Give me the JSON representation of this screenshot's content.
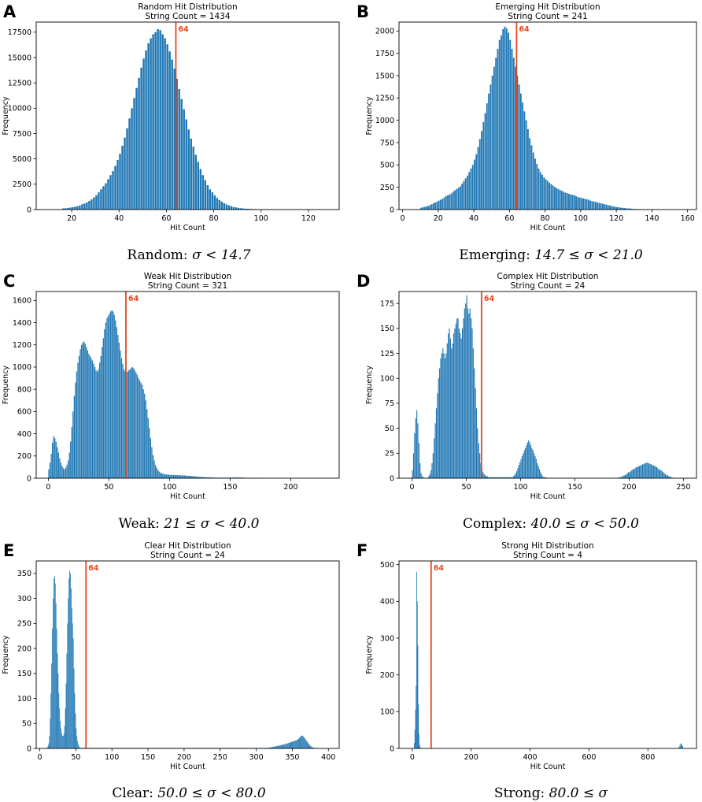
{
  "figure": {
    "bar_color": "#1f77b4",
    "marker_color": "#e8461a"
  },
  "chart_data": [
    {
      "panel": "A",
      "type": "bar",
      "title": "Random Hit Distribution",
      "subtitle": "String Count = 1434",
      "xlabel": "Hit Count",
      "ylabel": "Frequency",
      "xlim": [
        5,
        133
      ],
      "ylim": [
        0,
        18500
      ],
      "xticks": [
        20,
        40,
        60,
        80,
        100,
        120
      ],
      "yticks": [
        0,
        2500,
        5000,
        7500,
        10000,
        12500,
        15000,
        17500
      ],
      "marker": 64,
      "marker_label": "64",
      "bin_width": 1,
      "x_start": 16,
      "values": [
        120,
        140,
        160,
        200,
        230,
        280,
        330,
        400,
        520,
        600,
        700,
        850,
        1000,
        1200,
        1400,
        1700,
        2000,
        2300,
        2600,
        3000,
        3400,
        3800,
        4300,
        4900,
        5500,
        6300,
        7100,
        8000,
        9000,
        10000,
        11000,
        12000,
        13000,
        14000,
        14900,
        15700,
        16400,
        16900,
        17300,
        17500,
        17800,
        17700,
        17300,
        16900,
        16300,
        15600,
        14800,
        13900,
        12900,
        11900,
        10900,
        9900,
        8900,
        7900,
        7000,
        6200,
        5400,
        4700,
        4000,
        3400,
        2900,
        2400,
        2000,
        1700,
        1400,
        1150,
        950,
        780,
        630,
        510,
        410,
        330,
        260,
        210,
        170,
        140,
        110,
        90,
        80,
        70,
        60,
        50,
        40,
        40,
        35,
        30,
        25,
        20,
        20,
        15,
        12,
        10,
        10,
        8,
        6,
        5,
        5,
        4,
        3,
        2,
        2,
        2,
        1,
        1,
        1,
        1,
        1
      ]
    },
    {
      "panel": "B",
      "type": "bar",
      "title": "Emerging Hit Distribution",
      "subtitle": "String Count = 241",
      "xlabel": "Hit Count",
      "ylabel": "Frequency",
      "xlim": [
        -2,
        165
      ],
      "ylim": [
        0,
        2100
      ],
      "xticks": [
        0,
        20,
        40,
        60,
        80,
        100,
        120,
        140,
        160
      ],
      "yticks": [
        0,
        250,
        500,
        750,
        1000,
        1250,
        1500,
        1750,
        2000
      ],
      "marker": 64,
      "marker_label": "64",
      "bin_width": 1,
      "x_start": 10,
      "values": [
        20,
        25,
        30,
        35,
        40,
        50,
        60,
        70,
        80,
        90,
        100,
        110,
        120,
        135,
        150,
        160,
        170,
        180,
        200,
        215,
        230,
        245,
        260,
        290,
        320,
        350,
        380,
        420,
        460,
        500,
        560,
        620,
        700,
        790,
        880,
        980,
        1080,
        1190,
        1300,
        1400,
        1500,
        1600,
        1700,
        1800,
        1900,
        1950,
        2020,
        2050,
        2030,
        1980,
        1900,
        1800,
        1700,
        1600,
        1500,
        1400,
        1300,
        1200,
        1100,
        1000,
        900,
        800,
        720,
        640,
        570,
        510,
        460,
        420,
        390,
        360,
        340,
        320,
        300,
        285,
        270,
        255,
        240,
        230,
        220,
        210,
        200,
        190,
        185,
        175,
        170,
        165,
        160,
        150,
        140,
        135,
        130,
        125,
        120,
        115,
        110,
        100,
        95,
        90,
        85,
        80,
        75,
        70,
        65,
        60,
        55,
        50,
        45,
        40,
        35,
        30,
        28,
        25,
        22,
        20,
        18,
        15,
        13,
        12,
        10,
        8,
        7,
        6,
        5,
        4,
        3,
        3,
        2,
        2,
        1,
        1,
        1,
        1,
        1,
        1
      ]
    },
    {
      "panel": "C",
      "type": "bar",
      "title": "Weak Hit Distribution",
      "subtitle": "String Count = 321",
      "xlabel": "Hit Count",
      "ylabel": "Frequency",
      "xlim": [
        -10,
        240
      ],
      "ylim": [
        0,
        1680
      ],
      "xticks": [
        0,
        50,
        100,
        150,
        200
      ],
      "yticks": [
        0,
        200,
        400,
        600,
        800,
        1000,
        1200,
        1400,
        1600
      ],
      "marker": 64,
      "marker_label": "64",
      "bin_width": 1,
      "x_start": 0,
      "values": [
        80,
        140,
        220,
        320,
        380,
        360,
        330,
        280,
        230,
        180,
        140,
        110,
        90,
        80,
        95,
        120,
        160,
        230,
        330,
        460,
        600,
        740,
        860,
        960,
        1040,
        1100,
        1160,
        1200,
        1220,
        1230,
        1210,
        1180,
        1150,
        1120,
        1100,
        1080,
        1060,
        1030,
        1000,
        970,
        960,
        980,
        1040,
        1100,
        1180,
        1260,
        1340,
        1400,
        1440,
        1460,
        1480,
        1500,
        1510,
        1500,
        1470,
        1420,
        1360,
        1290,
        1220,
        1150,
        1080,
        1030,
        980,
        960,
        950,
        960,
        970,
        980,
        990,
        1000,
        990,
        970,
        950,
        930,
        900,
        880,
        860,
        840,
        800,
        760,
        700,
        620,
        540,
        450,
        360,
        280,
        210,
        160,
        120,
        95,
        75,
        60,
        50,
        45,
        40,
        38,
        35,
        34,
        33,
        32,
        31,
        30,
        30,
        29,
        29,
        28,
        28,
        27,
        27,
        26,
        26,
        25,
        25,
        24,
        23,
        22,
        21,
        20,
        19,
        18,
        17,
        16,
        15,
        14,
        13,
        12,
        11,
        10,
        10,
        9,
        9,
        8,
        8,
        8,
        7,
        7,
        7,
        6,
        6,
        6,
        5,
        5,
        5,
        5,
        5,
        5,
        5,
        5,
        5,
        5,
        6,
        6,
        6,
        6,
        7,
        7,
        7,
        6,
        6,
        6,
        5,
        5,
        5,
        4,
        4,
        3,
        3,
        2,
        2,
        2,
        1,
        1,
        1,
        1
      ]
    },
    {
      "panel": "D",
      "type": "bar",
      "title": "Complex Hit Distribution",
      "subtitle": "String Count = 24",
      "xlabel": "Hit Count",
      "ylabel": "Frequency",
      "xlim": [
        -12,
        262
      ],
      "ylim": [
        0,
        187
      ],
      "xticks": [
        0,
        50,
        100,
        150,
        200,
        250
      ],
      "yticks": [
        0,
        25,
        50,
        75,
        100,
        125,
        150,
        175
      ],
      "marker": 64,
      "marker_label": "64",
      "bin_width": 1,
      "x_start": 0,
      "values": [
        8,
        25,
        45,
        60,
        68,
        55,
        35,
        15,
        5,
        2,
        1,
        0,
        0,
        0,
        0,
        2,
        4,
        8,
        15,
        25,
        40,
        55,
        70,
        85,
        100,
        110,
        120,
        125,
        130,
        125,
        120,
        125,
        135,
        145,
        150,
        140,
        130,
        135,
        145,
        150,
        155,
        160,
        160,
        150,
        145,
        140,
        150,
        160,
        170,
        175,
        183,
        170,
        165,
        170,
        160,
        150,
        130,
        110,
        90,
        70,
        50,
        35,
        25,
        15,
        10,
        6,
        4,
        3,
        2,
        2,
        1,
        1,
        1,
        1,
        1,
        1,
        1,
        1,
        1,
        1,
        1,
        1,
        1,
        1,
        1,
        1,
        1,
        1,
        1,
        1,
        1,
        1,
        1,
        2,
        3,
        5,
        7,
        10,
        13,
        16,
        19,
        22,
        25,
        28,
        30,
        33,
        36,
        38,
        36,
        33,
        30,
        28,
        25,
        22,
        19,
        15,
        12,
        9,
        6,
        4,
        2,
        1,
        1,
        1,
        0,
        0,
        0,
        0,
        0,
        0,
        0,
        0,
        0,
        0,
        0,
        0,
        0,
        0,
        0,
        0,
        0,
        0,
        0,
        0,
        0,
        0,
        0,
        0,
        0,
        0,
        0,
        0,
        0,
        0,
        0,
        0,
        0,
        0,
        0,
        0,
        0,
        0,
        0,
        0,
        0,
        0,
        0,
        0,
        0,
        0,
        0,
        0,
        0,
        0,
        0,
        0,
        0,
        0,
        0,
        0,
        0,
        0,
        0,
        0,
        0,
        0,
        0,
        0,
        0,
        0,
        1,
        1,
        1,
        2,
        2,
        3,
        3,
        4,
        5,
        6,
        6,
        7,
        8,
        9,
        9,
        10,
        11,
        11,
        12,
        12,
        13,
        13,
        14,
        14,
        15,
        15,
        16,
        15,
        15,
        14,
        14,
        13,
        13,
        12,
        12,
        11,
        10,
        9,
        8,
        8,
        7,
        6,
        5,
        4,
        3,
        3,
        2,
        2,
        1,
        1
      ]
    },
    {
      "panel": "E",
      "type": "bar",
      "title": "Clear Hit Distribution",
      "subtitle": "String Count = 24",
      "xlabel": "Hit Count",
      "ylabel": "Frequency",
      "xlim": [
        -5,
        415
      ],
      "ylim": [
        0,
        375
      ],
      "xticks": [
        0,
        50,
        100,
        150,
        200,
        250,
        300,
        350,
        400
      ],
      "yticks": [
        0,
        50,
        100,
        150,
        200,
        250,
        300,
        350
      ],
      "marker": 64,
      "marker_label": "64",
      "bin_width": 1,
      "x_start": 10,
      "values": [
        2,
        5,
        10,
        25,
        60,
        110,
        170,
        240,
        300,
        340,
        345,
        330,
        290,
        240,
        190,
        150,
        110,
        80,
        55,
        40,
        30,
        25,
        25,
        30,
        45,
        80,
        130,
        190,
        250,
        300,
        340,
        355,
        350,
        320,
        280,
        250,
        220,
        160,
        110,
        70,
        40,
        25,
        15,
        8,
        4,
        2,
        1,
        1,
        1,
        1,
        1,
        1,
        1,
        1,
        1,
        1,
        1,
        1,
        1,
        1,
        1,
        1,
        1,
        1,
        1,
        1,
        1,
        1,
        1,
        1,
        1,
        1,
        1,
        1,
        1,
        1,
        1,
        1,
        1,
        1,
        1,
        1,
        1,
        1,
        1,
        1,
        1,
        1,
        1,
        1,
        1,
        1,
        1,
        1,
        1,
        1,
        1,
        1,
        1,
        1,
        1,
        1,
        1,
        1,
        1,
        1,
        1,
        1,
        1,
        1,
        1,
        1,
        1,
        1,
        1,
        1,
        1,
        1,
        1,
        1,
        1,
        1,
        1,
        1,
        1,
        1,
        1,
        1,
        1,
        1,
        1,
        1,
        1,
        1,
        1,
        1,
        1,
        1,
        1,
        1,
        1,
        1,
        1,
        1,
        1,
        1,
        1,
        1,
        1,
        1,
        1,
        1,
        1,
        1,
        1,
        1,
        1,
        1,
        1,
        1,
        1,
        1,
        1,
        1,
        1,
        1,
        1,
        1,
        1,
        1,
        1,
        1,
        1,
        1,
        1,
        1,
        1,
        1,
        1,
        1,
        1,
        1,
        1,
        1,
        1,
        1,
        1,
        1,
        1,
        1,
        1,
        1,
        1,
        1,
        1,
        1,
        1,
        1,
        1,
        1,
        1,
        1,
        1,
        1,
        1,
        1,
        1,
        1,
        1,
        1,
        1,
        1,
        1,
        1,
        1,
        1,
        1,
        1,
        1,
        1,
        1,
        1,
        1,
        1,
        1,
        1,
        1,
        1,
        1,
        1,
        1,
        1,
        1,
        1,
        1,
        1,
        1,
        1,
        1,
        1,
        1,
        1,
        1,
        1,
        1,
        1,
        1,
        1,
        1,
        1,
        1,
        1,
        1,
        1,
        1,
        1,
        1,
        1,
        1,
        1,
        1,
        1,
        1,
        1,
        1,
        1,
        1,
        1,
        1,
        1,
        1,
        1,
        1,
        1,
        1,
        1,
        1,
        1,
        1,
        1,
        1,
        1,
        1,
        1,
        1,
        1,
        1,
        1,
        1,
        1,
        1,
        1,
        1,
        1,
        1,
        1,
        1,
        1,
        1,
        1,
        1,
        1,
        1,
        1,
        1,
        1,
        1,
        2,
        2,
        2,
        2,
        3,
        3,
        3,
        3,
        4,
        4,
        4,
        5,
        5,
        5,
        6,
        6,
        6,
        7,
        7,
        7,
        8,
        8,
        8,
        9,
        9,
        10,
        10,
        11,
        11,
        12,
        12,
        13,
        13,
        14,
        14,
        15,
        15,
        16,
        16,
        17,
        18,
        19,
        20,
        22,
        24,
        25,
        26,
        25,
        24,
        22,
        20,
        18,
        16,
        14,
        12,
        10,
        8,
        6,
        5,
        4,
        3,
        2,
        2,
        1,
        1,
        1,
        1
      ]
    },
    {
      "panel": "F",
      "type": "bar",
      "title": "Strong Hit Distribution",
      "subtitle": "String Count = 4",
      "xlabel": "Hit Count",
      "ylabel": "Frequency",
      "xlim": [
        -45,
        965
      ],
      "ylim": [
        0,
        510
      ],
      "xticks": [
        0,
        200,
        400,
        600,
        800
      ],
      "yticks": [
        0,
        100,
        200,
        300,
        400,
        500
      ],
      "marker": 64,
      "marker_label": "64",
      "bin_width": 2,
      "x_start": 6,
      "values": [
        15,
        50,
        105,
        170,
        480,
        400,
        280,
        120,
        40,
        10,
        3
      ],
      "extra_bars": [
        {
          "x": 905,
          "w": 3,
          "v": 5
        },
        {
          "x": 908,
          "w": 3,
          "v": 10
        },
        {
          "x": 911,
          "w": 3,
          "v": 14
        },
        {
          "x": 914,
          "w": 3,
          "v": 11
        },
        {
          "x": 917,
          "w": 3,
          "v": 6
        }
      ]
    }
  ],
  "captions": [
    {
      "label": "Random:",
      "math": "σ < 14.7"
    },
    {
      "label": "Emerging:",
      "math": "14.7 ≤ σ < 21.0"
    },
    {
      "label": "Weak:",
      "math": "21 ≤ σ < 40.0"
    },
    {
      "label": "Complex:",
      "math": "40.0 ≤ σ < 50.0"
    },
    {
      "label": "Clear:",
      "math": "50.0 ≤ σ < 80.0"
    },
    {
      "label": "Strong:",
      "math": "80.0 ≤ σ"
    }
  ]
}
